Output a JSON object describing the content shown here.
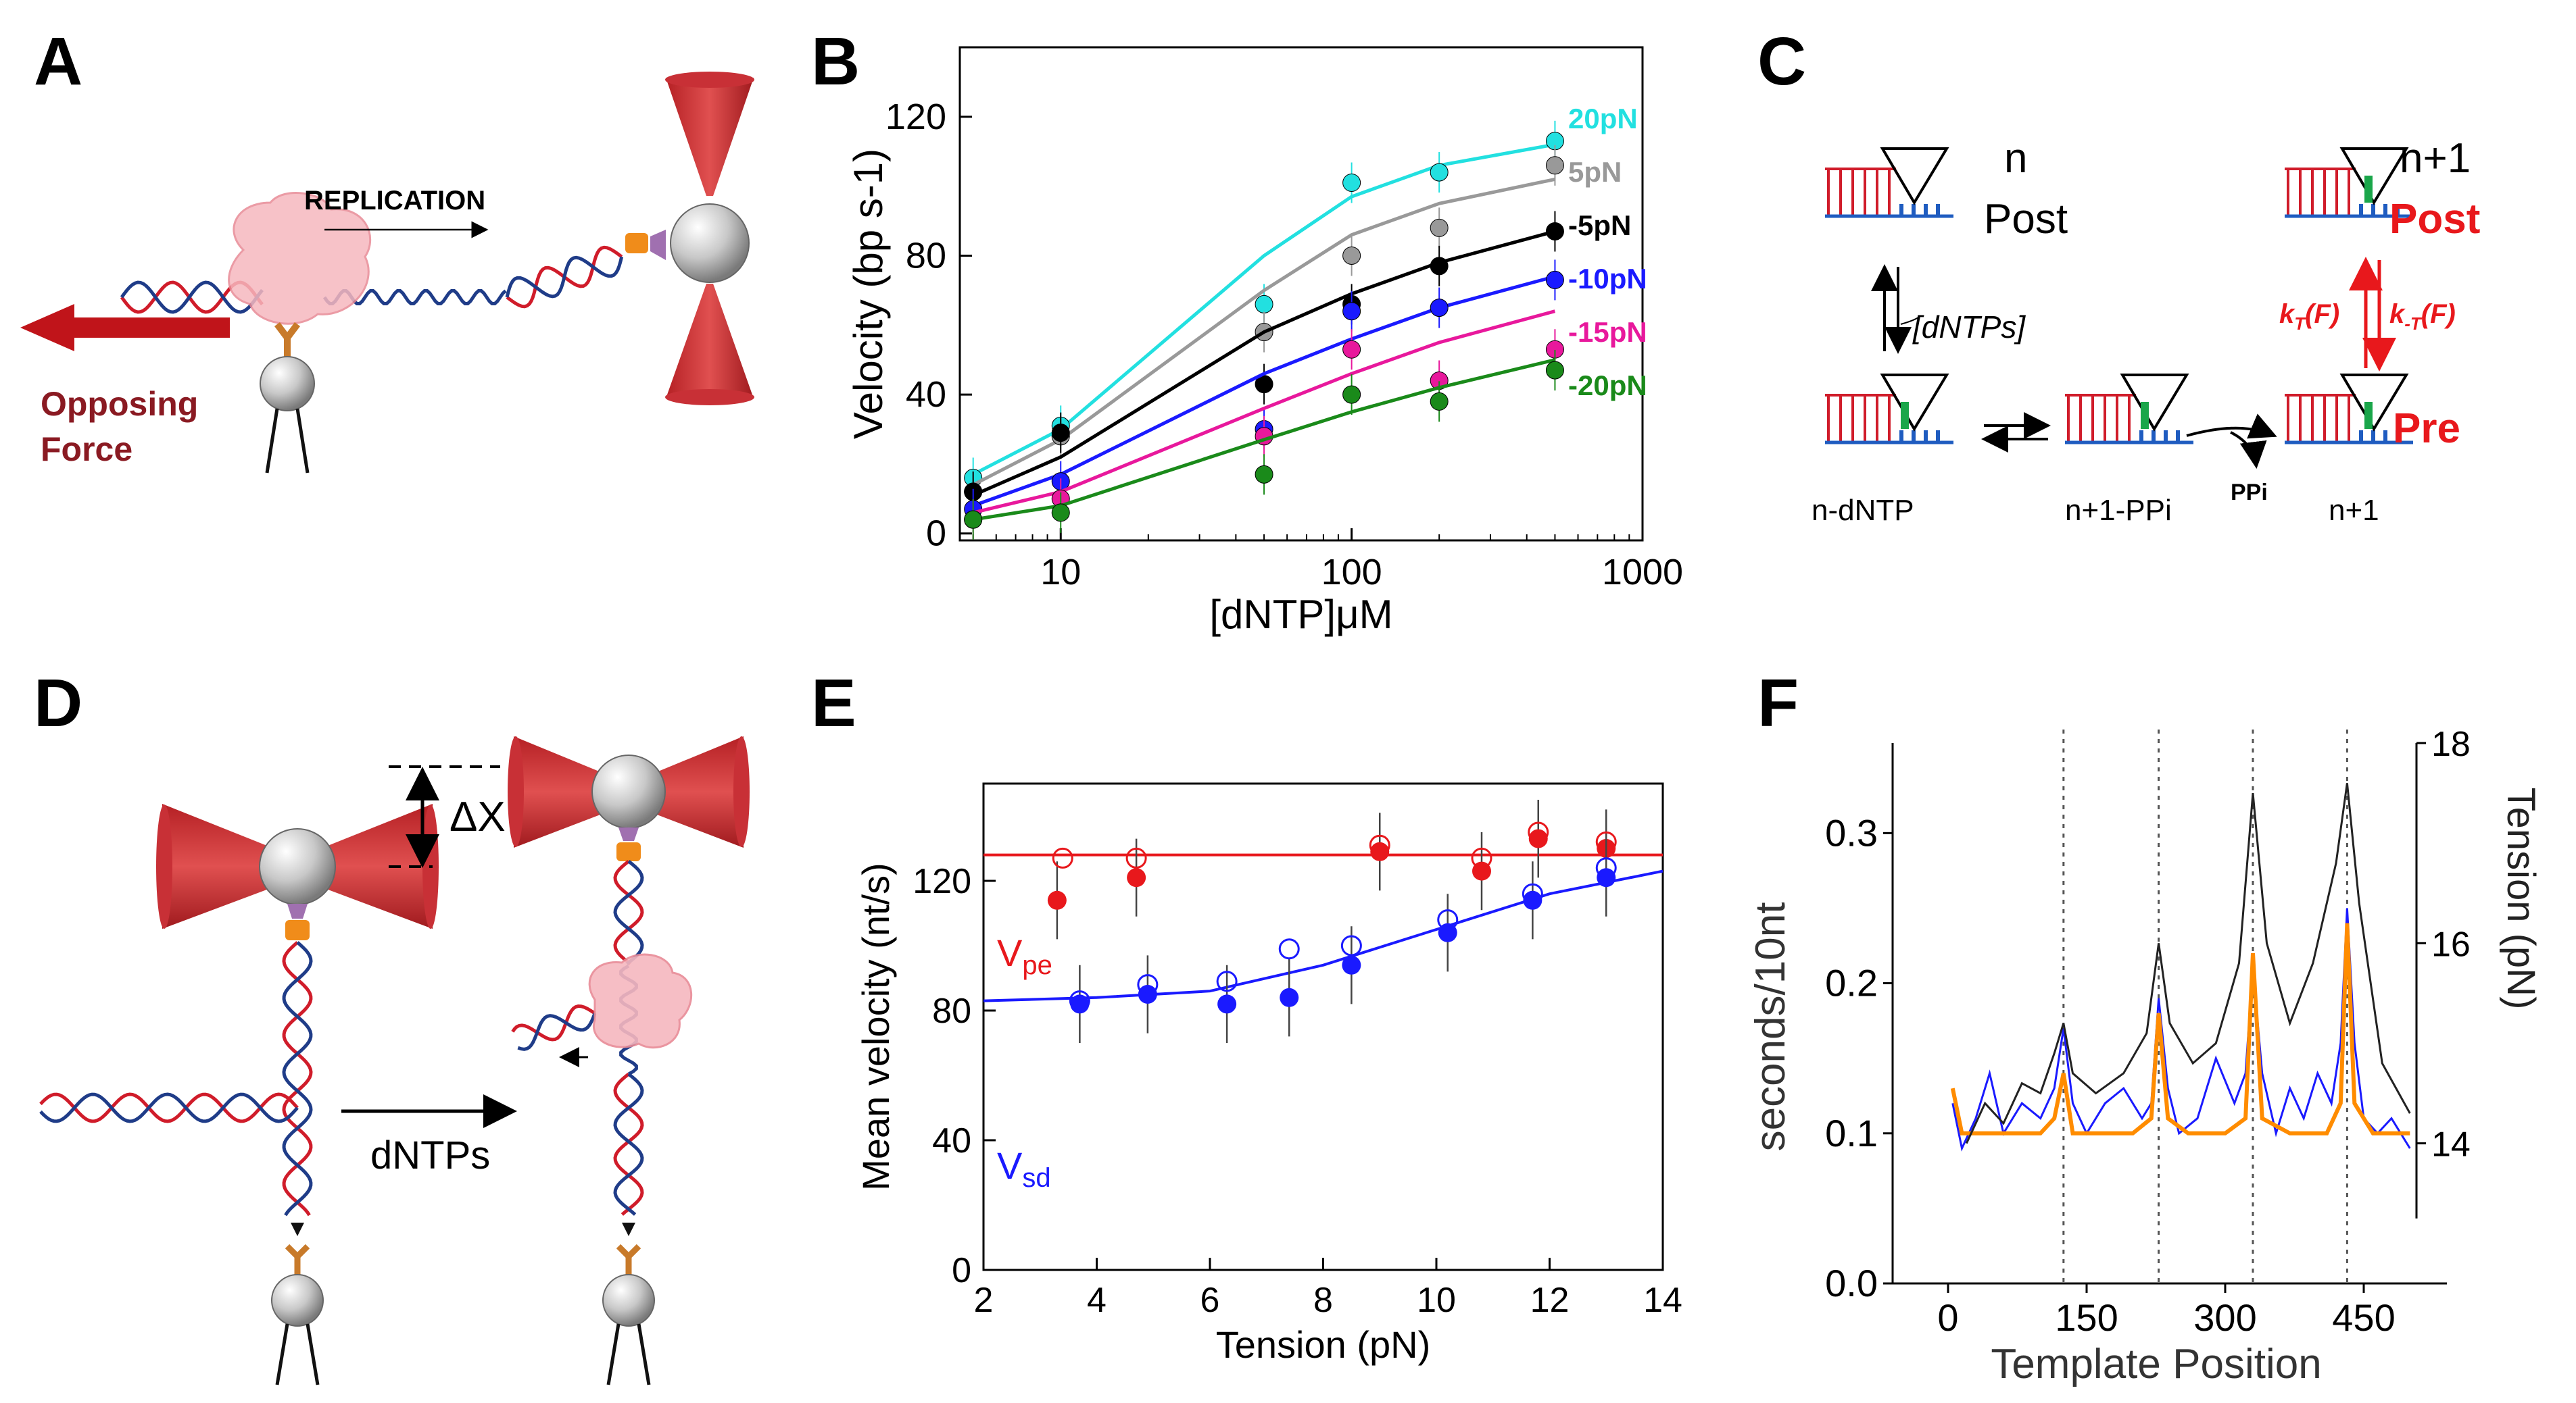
{
  "panels": {
    "A": {
      "letter": "A",
      "replication": "REPLICATION",
      "force_line1": "Opposing",
      "force_line2": "Force"
    },
    "B": {
      "letter": "B"
    },
    "C": {
      "letter": "C",
      "n": "n",
      "post": "Post",
      "n1": "n+1",
      "post_red": "Post",
      "dntps": "[dNTPs]",
      "kt": "k",
      "kt_sub": "T",
      "kt_arg": "(F)",
      "kmt": "k",
      "kmt_sub": "-T",
      "kmt_arg": "(F)",
      "pre": "Pre",
      "ppi": "PPi",
      "n_dntp": "n-dNTP",
      "n1_ppi": "n+1-PPi",
      "n1_bottom": "n+1"
    },
    "D": {
      "letter": "D",
      "delta_x": "ΔX",
      "dntps": "dNTPs"
    },
    "E": {
      "letter": "E",
      "vpe": "V",
      "vpe_sub": "pe",
      "vsd": "V",
      "vsd_sub": "sd"
    },
    "F": {
      "letter": "F"
    }
  },
  "colors": {
    "red": "#e8181c",
    "blue": "#1a1aff",
    "orange": "#ff8c00",
    "dark_red": "#b01010"
  },
  "chart_data": [
    {
      "panel": "B",
      "type": "line",
      "xlabel": "[dNTP]μM",
      "ylabel": "Velocity (bp s-1)",
      "xscale": "log",
      "xlim": [
        4.5,
        1000
      ],
      "ylim": [
        -2,
        140
      ],
      "xticks": [
        10,
        100,
        1000
      ],
      "xtick_labels": [
        "10",
        "100",
        "1000"
      ],
      "yticks": [
        0,
        40,
        80,
        120
      ],
      "x": [
        5,
        10,
        50,
        100,
        200,
        500
      ],
      "series": [
        {
          "name": "20pN",
          "color": "#22e0e0",
          "values": [
            16,
            31,
            66,
            101,
            104,
            113
          ],
          "fit": [
            17,
            30,
            80,
            97,
            106,
            112
          ]
        },
        {
          "name": "5pN",
          "color": "#999999",
          "values": [
            12,
            28,
            58,
            80,
            88,
            106
          ],
          "fit": [
            14,
            27,
            70,
            86,
            95,
            102
          ]
        },
        {
          "name": "-5pN",
          "color": "#000000",
          "values": [
            12,
            29,
            43,
            66,
            77,
            87
          ],
          "fit": [
            11,
            22,
            58,
            69,
            78,
            87
          ]
        },
        {
          "name": "-10pN",
          "color": "#1a1aff",
          "values": [
            7,
            15,
            30,
            64,
            65,
            73
          ],
          "fit": [
            8,
            17,
            46,
            56,
            65,
            74
          ]
        },
        {
          "name": "-15pN",
          "color": "#e8189c",
          "values": [
            4,
            10,
            28,
            53,
            44,
            53
          ],
          "fit": [
            6,
            12,
            36,
            46,
            55,
            64
          ]
        },
        {
          "name": "-20pN",
          "color": "#1a8a1a",
          "values": [
            4,
            6,
            17,
            40,
            38,
            47
          ],
          "fit": [
            4,
            8,
            27,
            35,
            42,
            50
          ]
        }
      ]
    },
    {
      "panel": "E",
      "type": "scatter",
      "xlabel": "Tension (pN)",
      "ylabel": "Mean velocity (nt/s)",
      "xlim": [
        2,
        14
      ],
      "ylim": [
        0,
        150
      ],
      "xticks": [
        2,
        4,
        6,
        8,
        10,
        12,
        14
      ],
      "yticks": [
        0,
        40,
        80,
        120
      ],
      "series": [
        {
          "name": "Vpe",
          "color": "#e8181c",
          "filled": [
            [
              3.3,
              114
            ],
            [
              4.7,
              121
            ],
            [
              9.0,
              129
            ],
            [
              10.8,
              123
            ],
            [
              11.8,
              133
            ],
            [
              13.0,
              130
            ]
          ],
          "open": [
            [
              3.4,
              127
            ],
            [
              4.7,
              127
            ],
            [
              9.0,
              131
            ],
            [
              10.8,
              127
            ],
            [
              11.8,
              135
            ],
            [
              13.0,
              132
            ]
          ],
          "fit": [
            [
              2,
              128
            ],
            [
              14,
              128
            ]
          ]
        },
        {
          "name": "Vsd",
          "color": "#1a1aff",
          "filled": [
            [
              3.7,
              82
            ],
            [
              4.9,
              85
            ],
            [
              6.3,
              82
            ],
            [
              7.4,
              84
            ],
            [
              8.5,
              94
            ],
            [
              10.2,
              104
            ],
            [
              11.7,
              114
            ],
            [
              13.0,
              121
            ]
          ],
          "open": [
            [
              3.7,
              83
            ],
            [
              4.9,
              88
            ],
            [
              6.3,
              89
            ],
            [
              7.4,
              99
            ],
            [
              8.5,
              100
            ],
            [
              10.2,
              108
            ],
            [
              11.7,
              116
            ],
            [
              13.0,
              124
            ]
          ],
          "fit": [
            [
              2,
              83
            ],
            [
              4,
              84
            ],
            [
              6,
              86
            ],
            [
              8,
              94
            ],
            [
              10,
              105
            ],
            [
              12,
              116
            ],
            [
              14,
              123
            ]
          ]
        }
      ]
    },
    {
      "panel": "F",
      "type": "line",
      "xlabel": "Template Position",
      "ylabel": "seconds/10nt",
      "ylabel_right": "Tension (pN)",
      "xlim": [
        -60,
        540
      ],
      "ylim": [
        0,
        0.36
      ],
      "xticks": [
        0,
        150,
        300,
        450
      ],
      "yticks": [
        0.0,
        0.1,
        0.2,
        0.3
      ],
      "ytick_labels": [
        "0.0",
        "0.1",
        "0.2",
        "0.3"
      ],
      "yticks_right": [
        14,
        16,
        18
      ],
      "ylim_right": [
        12.6,
        18
      ],
      "vlines": [
        125,
        228,
        330,
        432
      ],
      "series": [
        {
          "name": "blue",
          "color": "#1a1aff",
          "x": [
            5,
            15,
            30,
            45,
            60,
            80,
            100,
            115,
            125,
            135,
            150,
            170,
            190,
            210,
            220,
            228,
            238,
            250,
            270,
            290,
            310,
            322,
            330,
            340,
            355,
            370,
            385,
            400,
            415,
            425,
            432,
            440,
            450,
            465,
            480,
            500
          ],
          "values": [
            0.12,
            0.09,
            0.11,
            0.14,
            0.1,
            0.12,
            0.11,
            0.13,
            0.17,
            0.12,
            0.1,
            0.12,
            0.13,
            0.11,
            0.12,
            0.19,
            0.13,
            0.1,
            0.11,
            0.15,
            0.12,
            0.14,
            0.21,
            0.14,
            0.1,
            0.13,
            0.11,
            0.14,
            0.12,
            0.16,
            0.25,
            0.16,
            0.11,
            0.1,
            0.11,
            0.09
          ]
        },
        {
          "name": "orange",
          "color": "#ff8c00",
          "x": [
            5,
            15,
            30,
            60,
            100,
            115,
            125,
            135,
            160,
            200,
            220,
            228,
            238,
            260,
            300,
            322,
            330,
            340,
            370,
            410,
            425,
            432,
            440,
            460,
            500
          ],
          "values": [
            0.13,
            0.1,
            0.1,
            0.1,
            0.1,
            0.11,
            0.14,
            0.1,
            0.1,
            0.1,
            0.11,
            0.18,
            0.11,
            0.1,
            0.1,
            0.11,
            0.22,
            0.11,
            0.1,
            0.1,
            0.12,
            0.24,
            0.12,
            0.1,
            0.1
          ]
        },
        {
          "name": "gray",
          "color": "#222222",
          "axis": "right",
          "x": [
            20,
            40,
            60,
            80,
            100,
            115,
            125,
            135,
            160,
            190,
            215,
            228,
            240,
            265,
            290,
            315,
            330,
            345,
            370,
            395,
            420,
            432,
            445,
            470,
            500
          ],
          "values": [
            14.0,
            14.4,
            14.2,
            14.6,
            14.5,
            14.9,
            15.2,
            14.7,
            14.5,
            14.7,
            15.1,
            16.0,
            15.2,
            14.8,
            15.0,
            15.8,
            17.5,
            16.0,
            15.2,
            15.8,
            16.8,
            17.6,
            16.4,
            14.8,
            14.3
          ]
        }
      ]
    }
  ]
}
